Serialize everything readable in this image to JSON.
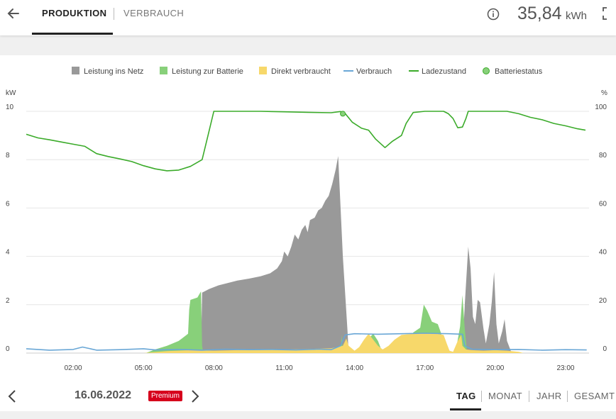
{
  "header": {
    "tabs": [
      {
        "label": "PRODUKTION",
        "active": true
      },
      {
        "label": "VERBRAUCH",
        "active": false
      }
    ],
    "total_value": "35,84",
    "total_unit": "kWh"
  },
  "footer": {
    "date": "16.06.2022",
    "badge": "Premium",
    "periods": [
      "TAG",
      "MONAT",
      "JAHR",
      "GESAMT"
    ],
    "active_period": "TAG"
  },
  "colors": {
    "grid_feed": "#999999",
    "battery_charge": "#88d07a",
    "direct_use": "#f7d86a",
    "consumption": "#6aa7d6",
    "soc": "#3bab2a",
    "battery_status": "#88d07a",
    "premium_badge": "#d6001c"
  },
  "chart_data": {
    "type": "area",
    "legend": [
      {
        "label": "Leistung ins Netz",
        "marker": "square",
        "color": "#999999"
      },
      {
        "label": "Leistung zur Batterie",
        "marker": "square",
        "color": "#88d07a"
      },
      {
        "label": "Direkt verbraucht",
        "marker": "square",
        "color": "#f7d86a"
      },
      {
        "label": "Verbrauch",
        "marker": "line",
        "color": "#6aa7d6"
      },
      {
        "label": "Ladezustand",
        "marker": "line",
        "color": "#3bab2a"
      },
      {
        "label": "Batteriestatus",
        "marker": "circle",
        "color": "#88d07a"
      }
    ],
    "legend_position": "top",
    "y_left_label": "kW",
    "y_right_label": "%",
    "y_left_ticks": [
      "0",
      "2",
      "4",
      "6",
      "8",
      "10"
    ],
    "y_right_ticks": [
      "0",
      "20",
      "40",
      "60",
      "80",
      "100"
    ],
    "ylim_left": [
      0,
      10
    ],
    "ylim_right": [
      0,
      100
    ],
    "x_range_hours": [
      0,
      24
    ],
    "x_ticks": [
      "02:00",
      "05:00",
      "08:00",
      "11:00",
      "14:00",
      "17:00",
      "20:00",
      "23:00"
    ],
    "x_tick_hours": [
      2,
      5,
      8,
      11,
      14,
      17,
      20,
      23
    ],
    "grid": true,
    "series": [
      {
        "name": "Leistung ins Netz",
        "unit": "kW",
        "kind": "area",
        "points": [
          [
            7.45,
            0
          ],
          [
            7.5,
            2.5
          ],
          [
            7.8,
            2.65
          ],
          [
            8.2,
            2.8
          ],
          [
            8.6,
            2.9
          ],
          [
            9.0,
            3.0
          ],
          [
            9.5,
            3.08
          ],
          [
            10.0,
            3.18
          ],
          [
            10.4,
            3.3
          ],
          [
            10.7,
            3.5
          ],
          [
            10.9,
            3.8
          ],
          [
            11.0,
            4.2
          ],
          [
            11.15,
            4.0
          ],
          [
            11.3,
            4.4
          ],
          [
            11.45,
            4.9
          ],
          [
            11.6,
            4.7
          ],
          [
            11.75,
            5.1
          ],
          [
            11.9,
            5.3
          ],
          [
            12.0,
            5.0
          ],
          [
            12.1,
            5.5
          ],
          [
            12.3,
            5.6
          ],
          [
            12.45,
            5.9
          ],
          [
            12.6,
            6.0
          ],
          [
            12.75,
            6.3
          ],
          [
            12.9,
            6.5
          ],
          [
            13.05,
            7.0
          ],
          [
            13.2,
            7.6
          ],
          [
            13.3,
            8.15
          ],
          [
            13.5,
            4.0
          ],
          [
            13.7,
            0.9
          ],
          [
            13.75,
            0.0
          ],
          [
            18.6,
            0
          ],
          [
            18.7,
            2.0
          ],
          [
            18.85,
            4.4
          ],
          [
            18.95,
            3.5
          ],
          [
            19.05,
            1.5
          ],
          [
            19.15,
            1.2
          ],
          [
            19.25,
            2.2
          ],
          [
            19.35,
            2.1
          ],
          [
            19.5,
            1.0
          ],
          [
            19.6,
            0.4
          ],
          [
            19.75,
            1.2
          ],
          [
            19.85,
            2.1
          ],
          [
            19.95,
            3.35
          ],
          [
            20.05,
            1.2
          ],
          [
            20.15,
            0.4
          ],
          [
            20.3,
            0.9
          ],
          [
            20.4,
            1.4
          ],
          [
            20.5,
            0.5
          ],
          [
            20.6,
            0.25
          ],
          [
            20.7,
            0
          ]
        ]
      },
      {
        "name": "Leistung zur Batterie",
        "unit": "kW",
        "kind": "area",
        "points": [
          [
            5.1,
            0
          ],
          [
            5.5,
            0.15
          ],
          [
            6.0,
            0.3
          ],
          [
            6.5,
            0.5
          ],
          [
            6.9,
            0.8
          ],
          [
            6.95,
            1.8
          ],
          [
            7.0,
            2.2
          ],
          [
            7.3,
            2.3
          ],
          [
            7.45,
            2.55
          ],
          [
            7.5,
            0.3
          ],
          [
            7.55,
            0
          ],
          [
            13.4,
            0
          ],
          [
            13.45,
            0.75
          ],
          [
            13.5,
            0
          ],
          [
            14.5,
            0
          ],
          [
            14.6,
            0.6
          ],
          [
            14.8,
            0.8
          ],
          [
            15.0,
            0.5
          ],
          [
            15.2,
            0
          ],
          [
            16.3,
            0
          ],
          [
            16.5,
            0.85
          ],
          [
            16.8,
            1.05
          ],
          [
            16.95,
            2.0
          ],
          [
            17.1,
            1.75
          ],
          [
            17.3,
            1.3
          ],
          [
            17.55,
            1.2
          ],
          [
            17.7,
            0.8
          ],
          [
            17.8,
            0
          ],
          [
            18.3,
            0
          ],
          [
            18.5,
            1.1
          ],
          [
            18.6,
            2.4
          ],
          [
            18.7,
            1.0
          ],
          [
            18.8,
            0
          ]
        ]
      },
      {
        "name": "Direkt verbraucht",
        "unit": "kW",
        "kind": "area",
        "points": [
          [
            5.0,
            0
          ],
          [
            6.0,
            0.08
          ],
          [
            7.0,
            0.12
          ],
          [
            8.0,
            0.1
          ],
          [
            9.0,
            0.12
          ],
          [
            10.0,
            0.13
          ],
          [
            11.0,
            0.15
          ],
          [
            12.0,
            0.17
          ],
          [
            13.0,
            0.2
          ],
          [
            13.5,
            0.3
          ],
          [
            13.65,
            0.6
          ],
          [
            13.75,
            0.3
          ],
          [
            14.0,
            0.1
          ],
          [
            14.2,
            0.25
          ],
          [
            14.4,
            0.55
          ],
          [
            14.6,
            0.8
          ],
          [
            14.8,
            0.55
          ],
          [
            15.0,
            0.3
          ],
          [
            15.2,
            0.15
          ],
          [
            15.45,
            0.3
          ],
          [
            15.7,
            0.55
          ],
          [
            16.0,
            0.75
          ],
          [
            16.5,
            0.8
          ],
          [
            17.0,
            0.82
          ],
          [
            17.5,
            0.8
          ],
          [
            17.8,
            0.75
          ],
          [
            17.95,
            0.35
          ],
          [
            18.05,
            0.1
          ],
          [
            18.2,
            0.05
          ],
          [
            18.4,
            0.5
          ],
          [
            18.55,
            0.75
          ],
          [
            18.6,
            0.3
          ],
          [
            18.75,
            0.15
          ],
          [
            19.0,
            0.12
          ],
          [
            19.5,
            0.1
          ],
          [
            20.0,
            0.12
          ],
          [
            20.5,
            0.1
          ],
          [
            21.0,
            0.05
          ],
          [
            21.2,
            0
          ]
        ]
      },
      {
        "name": "Verbrauch",
        "unit": "kW",
        "kind": "line",
        "points": [
          [
            0.0,
            0.18
          ],
          [
            1.0,
            0.12
          ],
          [
            2.0,
            0.15
          ],
          [
            2.4,
            0.25
          ],
          [
            3.0,
            0.12
          ],
          [
            4.0,
            0.14
          ],
          [
            5.0,
            0.18
          ],
          [
            5.5,
            0.13
          ],
          [
            6.5,
            0.15
          ],
          [
            7.5,
            0.12
          ],
          [
            8.5,
            0.16
          ],
          [
            9.5,
            0.14
          ],
          [
            10.5,
            0.15
          ],
          [
            11.5,
            0.13
          ],
          [
            12.5,
            0.16
          ],
          [
            13.0,
            0.14
          ],
          [
            13.4,
            0.3
          ],
          [
            13.6,
            0.75
          ],
          [
            14.0,
            0.8
          ],
          [
            15.0,
            0.78
          ],
          [
            16.0,
            0.8
          ],
          [
            17.0,
            0.82
          ],
          [
            18.0,
            0.8
          ],
          [
            18.6,
            0.78
          ],
          [
            18.7,
            0.3
          ],
          [
            19.0,
            0.16
          ],
          [
            20.0,
            0.14
          ],
          [
            21.0,
            0.15
          ],
          [
            22.0,
            0.12
          ],
          [
            23.0,
            0.14
          ],
          [
            23.9,
            0.13
          ]
        ]
      },
      {
        "name": "Ladezustand",
        "unit": "%",
        "kind": "line",
        "points": [
          [
            0.0,
            90.5
          ],
          [
            0.5,
            89
          ],
          [
            1.0,
            88.2
          ],
          [
            1.5,
            87.3
          ],
          [
            2.0,
            86.4
          ],
          [
            2.5,
            85.5
          ],
          [
            3.0,
            82.5
          ],
          [
            3.5,
            81.3
          ],
          [
            4.0,
            80.3
          ],
          [
            4.5,
            79.2
          ],
          [
            5.0,
            77.5
          ],
          [
            5.5,
            76.2
          ],
          [
            6.0,
            75.4
          ],
          [
            6.5,
            75.7
          ],
          [
            7.0,
            77.2
          ],
          [
            7.5,
            80.0
          ],
          [
            7.75,
            90.0
          ],
          [
            8.0,
            100.0
          ],
          [
            9.0,
            100.0
          ],
          [
            10.0,
            100.0
          ],
          [
            11.0,
            99.8
          ],
          [
            12.0,
            99.6
          ],
          [
            13.0,
            99.4
          ],
          [
            13.4,
            99.9
          ],
          [
            13.6,
            99.1
          ],
          [
            13.9,
            95.5
          ],
          [
            14.3,
            93.0
          ],
          [
            14.6,
            92.2
          ],
          [
            14.9,
            88.5
          ],
          [
            15.3,
            85.0
          ],
          [
            15.6,
            87.5
          ],
          [
            16.0,
            90.0
          ],
          [
            16.2,
            95.0
          ],
          [
            16.5,
            99.5
          ],
          [
            17.0,
            100.0
          ],
          [
            17.8,
            100.0
          ],
          [
            18.0,
            99.0
          ],
          [
            18.2,
            97.0
          ],
          [
            18.4,
            93.2
          ],
          [
            18.6,
            93.5
          ],
          [
            18.75,
            97.0
          ],
          [
            18.85,
            100.0
          ],
          [
            19.5,
            100.0
          ],
          [
            20.5,
            100.0
          ],
          [
            21.0,
            99.0
          ],
          [
            21.5,
            97.5
          ],
          [
            22.0,
            96.5
          ],
          [
            22.5,
            95.0
          ],
          [
            23.0,
            94.0
          ],
          [
            23.5,
            92.8
          ],
          [
            23.85,
            92.2
          ]
        ]
      },
      {
        "name": "Batteriestatus",
        "unit": "%",
        "kind": "marker",
        "points": [
          [
            13.5,
            99.0
          ]
        ]
      }
    ]
  }
}
